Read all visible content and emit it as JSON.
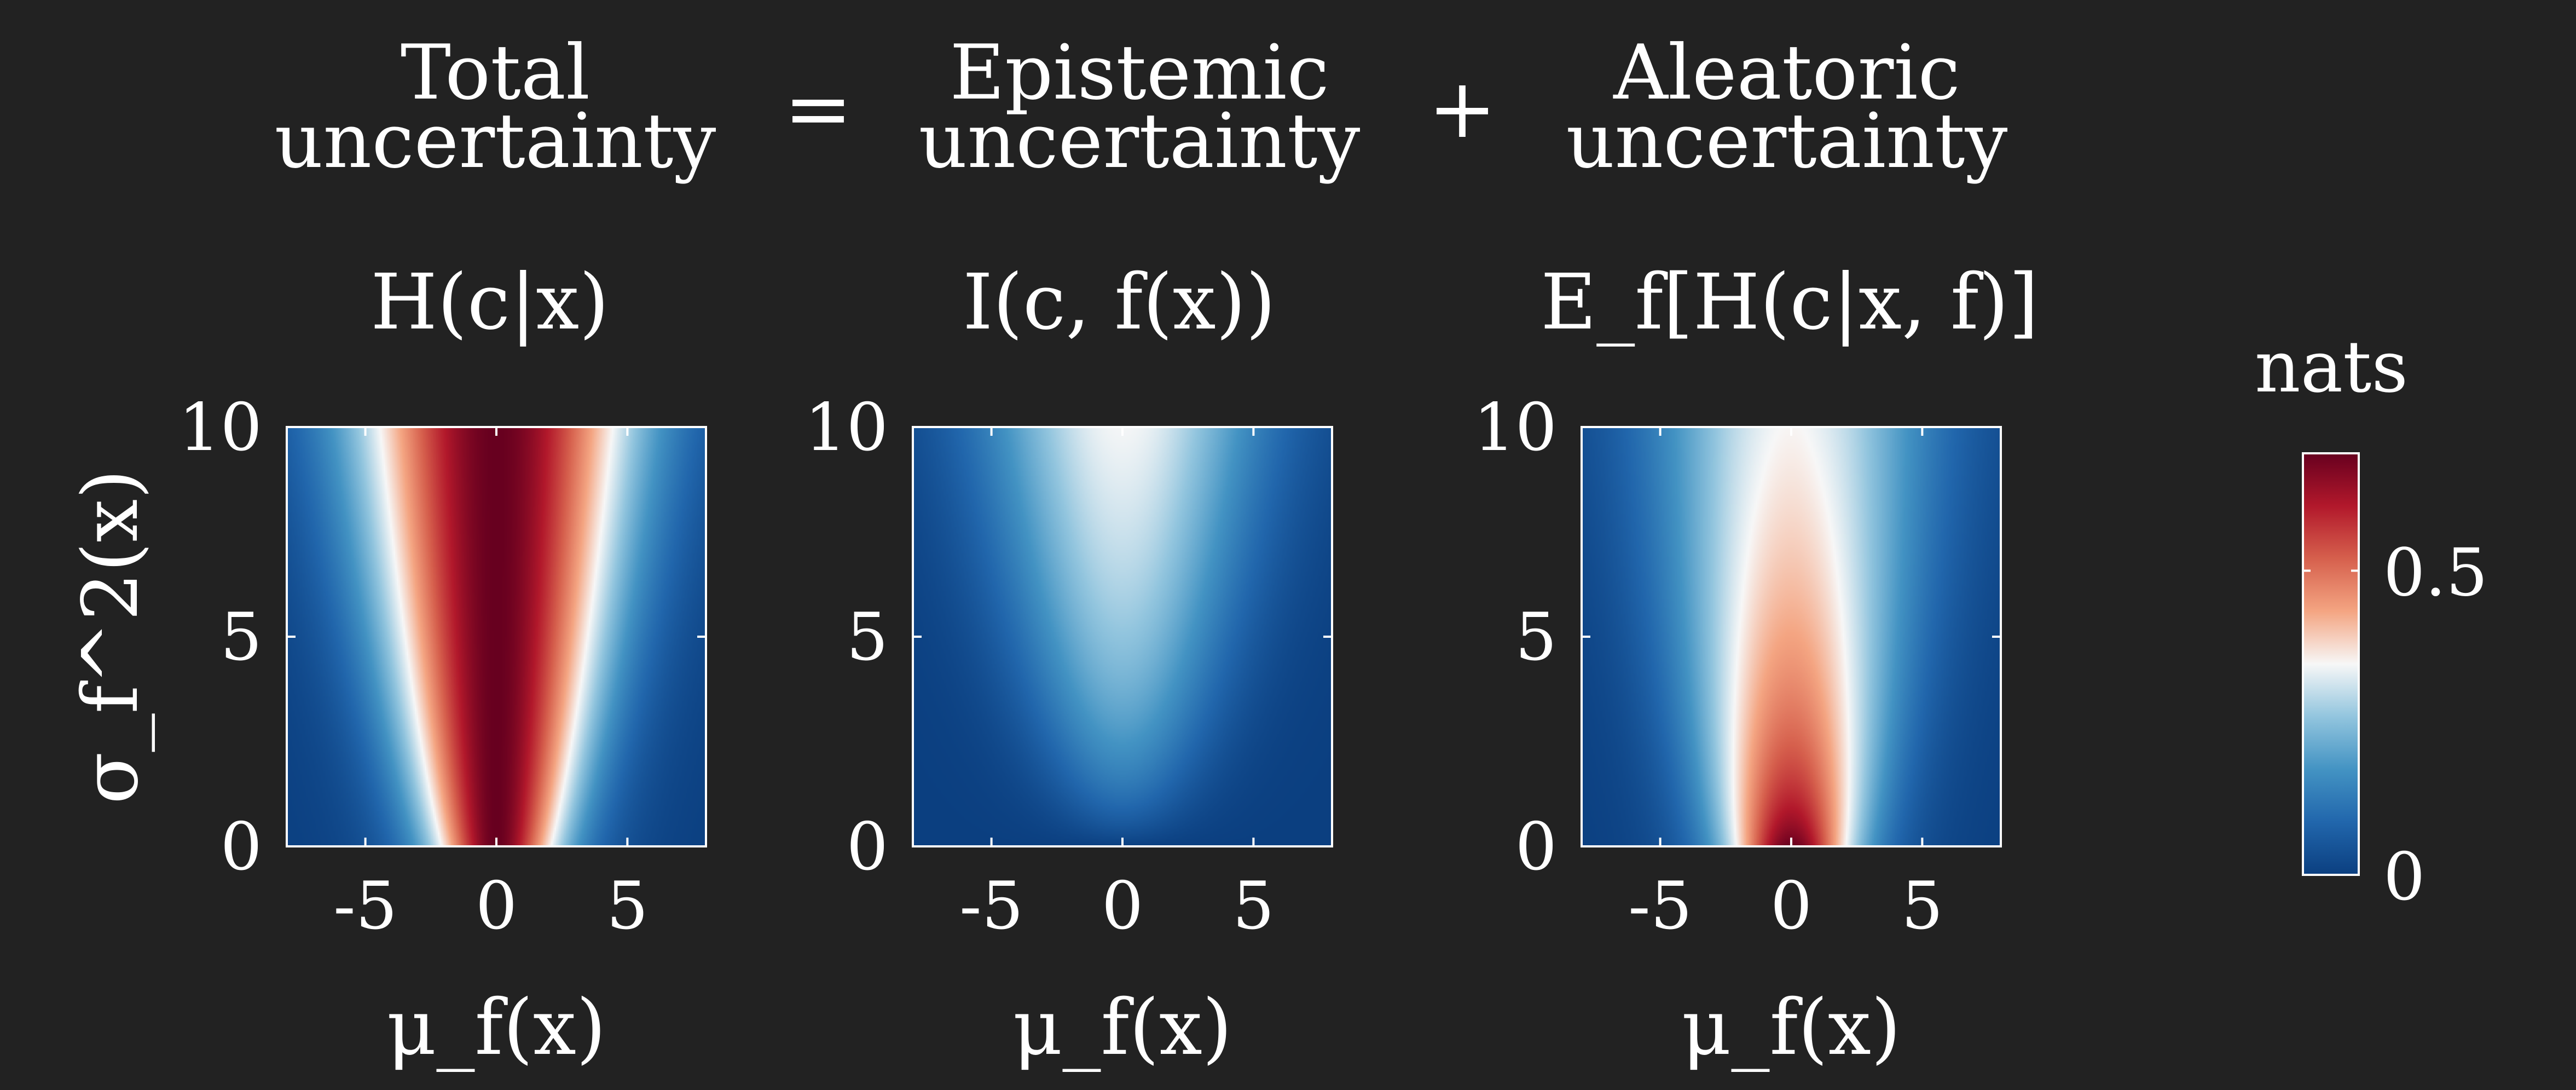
{
  "figure": {
    "equals": "=",
    "plus": "+",
    "panels": [
      {
        "title_line1": "Total",
        "title_line2": "uncertainty",
        "formula": "H(c|x)",
        "heatmap_kind": "total"
      },
      {
        "title_line1": "Epistemic",
        "title_line2": "uncertainty",
        "formula": "I(c, f(x))",
        "heatmap_kind": "epistemic"
      },
      {
        "title_line1": "Aleatoric",
        "title_line2": "uncertainty",
        "formula": "E_f[H(c|x, f)]",
        "heatmap_kind": "aleatoric"
      }
    ],
    "xlabel": "μ_f(x)",
    "ylabel": "σ_f^2(x)",
    "xticks": [
      "-5",
      "0",
      "5"
    ],
    "yticks": [
      "0",
      "5",
      "10"
    ],
    "colorbar": {
      "title": "nats",
      "ticks": [
        "0",
        "0.5"
      ],
      "range": [
        0,
        0.693
      ],
      "colors": [
        "#0b3f80",
        "#2166ac",
        "#4393c3",
        "#92c5de",
        "#f7f7f7",
        "#f4a582",
        "#d6604d",
        "#b2182b",
        "#67001f"
      ]
    }
  },
  "chart_data": {
    "type": "heatmap",
    "xlabel": "μ_f(x)",
    "ylabel": "σ_f^2(x)",
    "xlim": [
      -8,
      8
    ],
    "ylim": [
      0,
      10
    ],
    "zlabel": "nats",
    "zlim": [
      0,
      0.693
    ],
    "panels": [
      {
        "title": "Total uncertainty",
        "formula": "H(c|x)",
        "quantity": "total"
      },
      {
        "title": "Epistemic uncertainty",
        "formula": "I(c, f(x))",
        "quantity": "epistemic"
      },
      {
        "title": "Aleatoric uncertainty",
        "formula": "E_f[H(c|x, f)]",
        "quantity": "aleatoric"
      }
    ]
  }
}
